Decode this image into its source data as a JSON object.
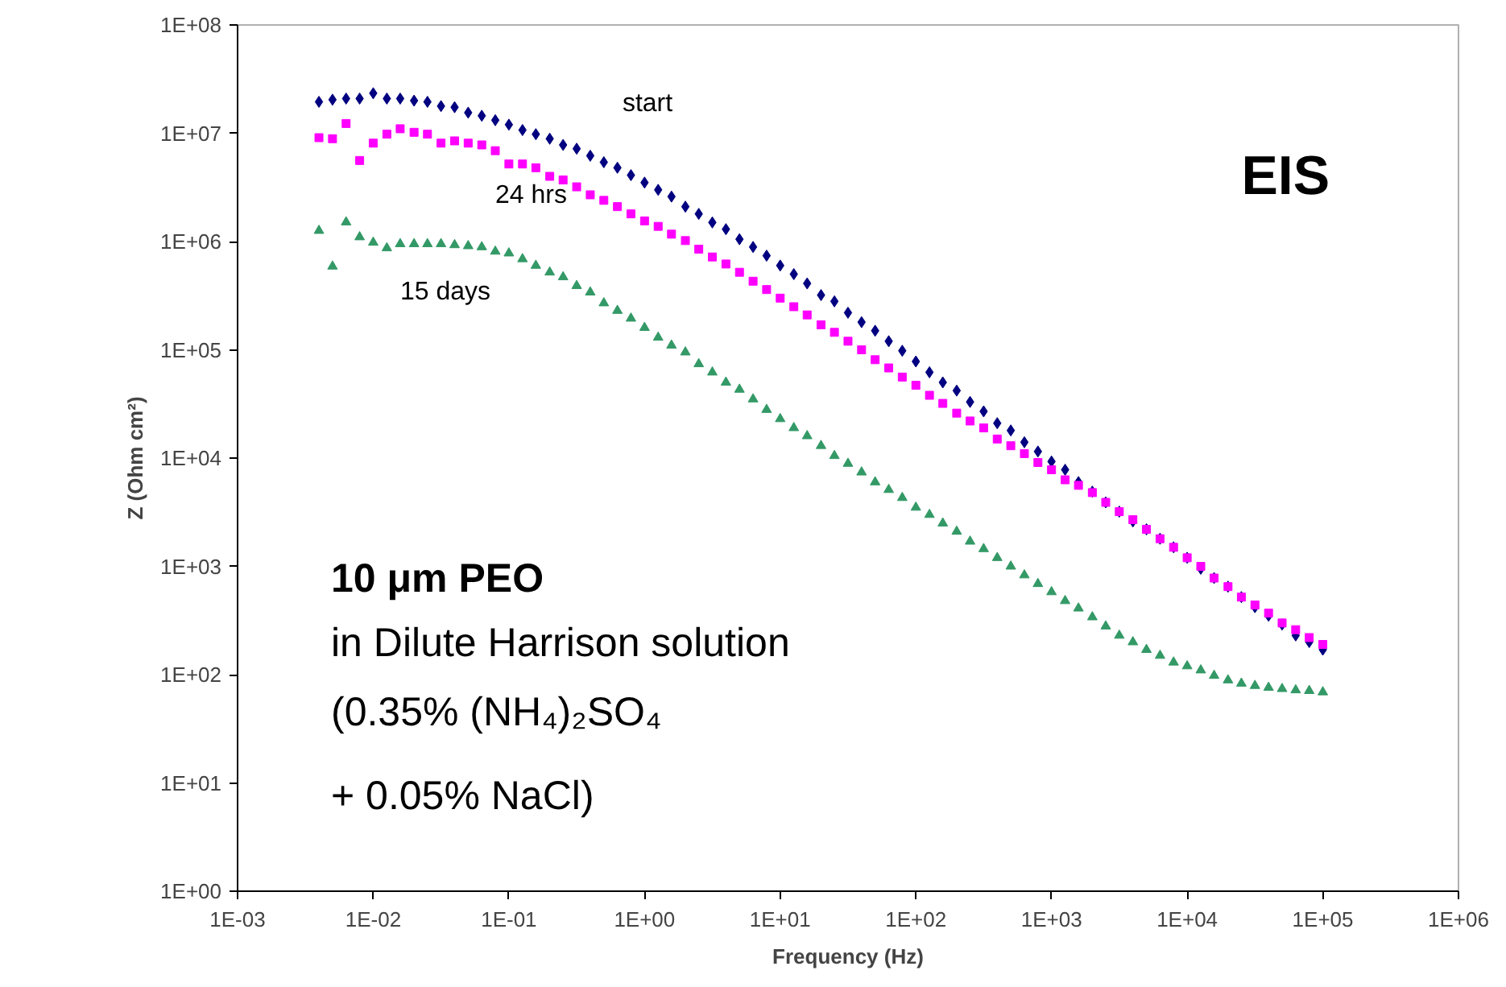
{
  "chart_data": {
    "type": "scatter",
    "xlabel": "Frequency (Hz)",
    "ylabel": "Z (Ohm cm²)",
    "log": "xy",
    "grid": false,
    "legend": false,
    "xlim": [
      0.001,
      1000000
    ],
    "ylim": [
      1,
      100000000
    ],
    "xticks": [
      {
        "value": 0.001,
        "label": "1E-03"
      },
      {
        "value": 0.01,
        "label": "1E-02"
      },
      {
        "value": 0.1,
        "label": "1E-01"
      },
      {
        "value": 1,
        "label": "1E+00"
      },
      {
        "value": 10,
        "label": "1E+01"
      },
      {
        "value": 100,
        "label": "1E+02"
      },
      {
        "value": 1000,
        "label": "1E+03"
      },
      {
        "value": 10000,
        "label": "1E+04"
      },
      {
        "value": 100000,
        "label": "1E+05"
      },
      {
        "value": 1000000,
        "label": "1E+06"
      }
    ],
    "yticks": [
      {
        "value": 1,
        "label": "1E+00"
      },
      {
        "value": 10,
        "label": "1E+01"
      },
      {
        "value": 100,
        "label": "1E+02"
      },
      {
        "value": 1000,
        "label": "1E+03"
      },
      {
        "value": 10000,
        "label": "1E+04"
      },
      {
        "value": 100000,
        "label": "1E+05"
      },
      {
        "value": 1000000,
        "label": "1E+06"
      },
      {
        "value": 10000000,
        "label": "1E+07"
      },
      {
        "value": 100000000,
        "label": "1E+08"
      }
    ],
    "x": [
      0.00398,
      0.00501,
      0.00631,
      0.00794,
      0.01,
      0.0126,
      0.0158,
      0.02,
      0.0251,
      0.0316,
      0.0398,
      0.0501,
      0.0631,
      0.0794,
      0.1,
      0.126,
      0.158,
      0.2,
      0.251,
      0.316,
      0.398,
      0.501,
      0.631,
      0.794,
      1,
      1.26,
      1.58,
      2,
      2.51,
      3.16,
      3.98,
      5.01,
      6.31,
      7.94,
      10,
      12.6,
      15.8,
      20,
      25.1,
      31.6,
      39.8,
      50.1,
      63.1,
      79.4,
      100,
      126,
      158,
      200,
      251,
      316,
      398,
      501,
      631,
      794,
      1000,
      1260,
      1580,
      2000,
      2510,
      3160,
      3980,
      5010,
      6310,
      7940,
      10000,
      12600,
      15800,
      20000,
      25100,
      31600,
      39800,
      50100,
      63100,
      79400,
      100000
    ],
    "series": [
      {
        "name": "start",
        "color": "#000080",
        "marker": "diamond",
        "values": [
          19500000.0,
          20400000.0,
          20900000.0,
          20900000.0,
          23400000.0,
          20900000.0,
          20900000.0,
          20000000.0,
          19500000.0,
          17800000.0,
          17400000.0,
          15500000.0,
          14500000.0,
          13200000.0,
          12000000.0,
          10700000.0,
          9800000.0,
          8900000.0,
          7800000.0,
          7200000.0,
          6200000.0,
          5400000.0,
          4800000.0,
          4100000.0,
          3500000.0,
          3000000.0,
          2600000.0,
          2100000.0,
          1800000.0,
          1500000.0,
          1300000.0,
          1050000.0,
          890000.0,
          740000.0,
          600000.0,
          500000.0,
          410000.0,
          320000.0,
          280000.0,
          220000.0,
          180000.0,
          150000.0,
          120000.0,
          98000.0,
          78000.0,
          62000.0,
          50000.0,
          42000.0,
          33000.0,
          27000.0,
          21000.0,
          18000.0,
          14000.0,
          11500.0,
          9300.0,
          7800.0,
          6000.0,
          4900.0,
          3900.0,
          3200.0,
          2600.0,
          2200.0,
          1800.0,
          1500.0,
          1200.0,
          950.0,
          780.0,
          650.0,
          520.0,
          420.0,
          350.0,
          290.0,
          230.0,
          200.0,
          170.0
        ]
      },
      {
        "name": "24 hrs",
        "color": "#ff00ff",
        "marker": "square",
        "values": [
          9100000.0,
          8900000.0,
          12300000.0,
          5600000.0,
          8100000.0,
          9800000.0,
          11000000.0,
          10200000.0,
          9800000.0,
          8100000.0,
          8500000.0,
          8100000.0,
          7800000.0,
          6900000.0,
          5200000.0,
          5200000.0,
          4800000.0,
          4000000.0,
          3700000.0,
          3200000.0,
          2700000.0,
          2400000.0,
          2100000.0,
          1800000.0,
          1550000.0,
          1380000.0,
          1170000.0,
          1020000.0,
          850000.0,
          720000.0,
          620000.0,
          520000.0,
          430000.0,
          360000.0,
          300000.0,
          250000.0,
          210000.0,
          170000.0,
          145000.0,
          120000.0,
          100000.0,
          81000.0,
          68000.0,
          56000.0,
          47000.0,
          38000.0,
          32000.0,
          26000.0,
          22000.0,
          19000.0,
          15000.0,
          13000.0,
          11000.0,
          9100.0,
          7800.0,
          6300.0,
          5600.0,
          4800.0,
          3900.0,
          3200.0,
          2700.0,
          2200.0,
          1800.0,
          1500.0,
          1200.0,
          1000.0,
          780.0,
          650.0,
          520.0,
          440.0,
          370.0,
          300.0,
          260.0,
          220.0,
          190.0
        ]
      },
      {
        "name": "15 days",
        "color": "#339966",
        "marker": "triangle",
        "values": [
          1260000.0,
          590000.0,
          1510000.0,
          1100000.0,
          980000.0,
          870000.0,
          950000.0,
          950000.0,
          950000.0,
          950000.0,
          930000.0,
          910000.0,
          890000.0,
          810000.0,
          780000.0,
          690000.0,
          600000.0,
          520000.0,
          470000.0,
          390000.0,
          340000.0,
          270000.0,
          230000.0,
          195000.0,
          160000.0,
          130000.0,
          110000.0,
          95000.0,
          74000.0,
          62000.0,
          50000.0,
          43000.0,
          35000.0,
          28000.0,
          23000.0,
          19000.0,
          16000.0,
          13000.0,
          10500.0,
          8900.0,
          7400.0,
          6000.0,
          5100.0,
          4300.0,
          3500.0,
          3000.0,
          2500.0,
          2100.0,
          1700.0,
          1450.0,
          1200.0,
          1000.0,
          830.0,
          690.0,
          580.0,
          480.0,
          410.0,
          340.0,
          280.0,
          230.0,
          200.0,
          170.0,
          150.0,
          130.0,
          120.0,
          110.0,
          98,
          89,
          83,
          79,
          76,
          74,
          72,
          71,
          69
        ]
      }
    ],
    "annotations": [
      "EIS",
      "10 μm PEO",
      "in Dilute Harrison solution",
      "(0.35% (NH₄)₂SO₄",
      " + 0.05% NaCl)"
    ]
  }
}
